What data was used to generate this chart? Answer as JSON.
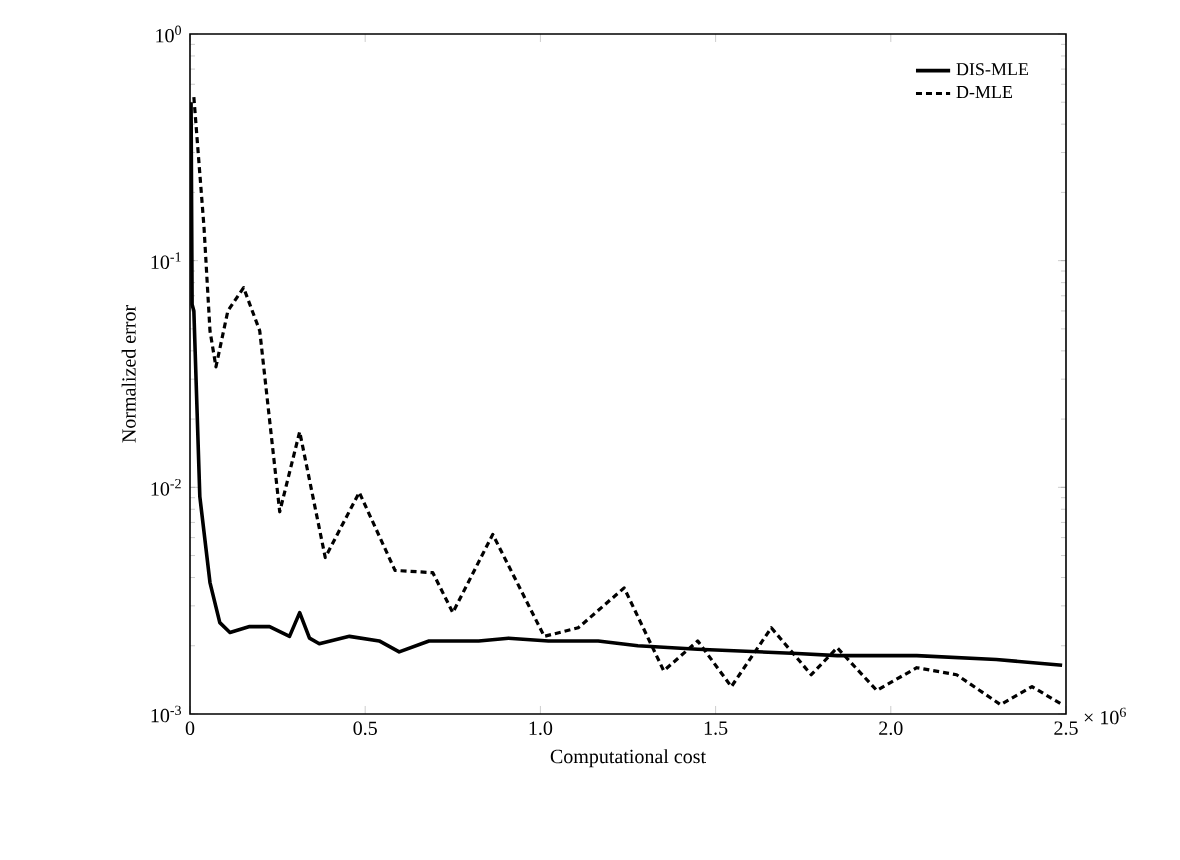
{
  "chart_data": {
    "type": "line",
    "xlabel": "Computational cost",
    "ylabel": "Normalized error",
    "log": "y",
    "legend": "top right",
    "grid": false,
    "xlim": [
      0,
      2.5
    ],
    "ylim": [
      0.001,
      1
    ],
    "xticks": [
      0,
      0.5,
      {
        "value": 1,
        "label": "1.0"
      },
      1.5,
      {
        "value": 2,
        "label": "2.0"
      },
      2.5
    ],
    "yticks": [
      {
        "value": 0.001,
        "label": "10$^{-3}$"
      },
      {
        "value": 0.01,
        "label": "10$^{-2}$"
      },
      {
        "value": 0.1,
        "label": "10$^{-1}$"
      },
      {
        "value": 1,
        "label": "10$^{0}$"
      }
    ],
    "annotations": [
      "× 10$^{6}$"
    ],
    "series": [
      {
        "name": "DIS-MLE",
        "color": "#000000",
        "line_style": "solid",
        "x": [
          0.003,
          0.006,
          0.011,
          0.028,
          0.057,
          0.085,
          0.114,
          0.17,
          0.227,
          0.284,
          0.313,
          0.341,
          0.369,
          0.455,
          0.54,
          0.597,
          0.682,
          0.824,
          0.909,
          1.023,
          1.165,
          1.278,
          1.449,
          1.733,
          1.847,
          2.074,
          2.301,
          2.489
        ],
        "values": [
          0.5,
          0.064,
          0.06,
          0.0091,
          0.0038,
          0.00253,
          0.00229,
          0.00243,
          0.00243,
          0.0022,
          0.0028,
          0.00216,
          0.00204,
          0.0022,
          0.0021,
          0.00188,
          0.0021,
          0.0021,
          0.00216,
          0.0021,
          0.0021,
          0.002,
          0.00193,
          0.00185,
          0.00181,
          0.00181,
          0.00174,
          0.00164
        ]
      },
      {
        "name": "D-MLE",
        "color": "#000000",
        "line_style": "dashed",
        "x": [
          0.011,
          0.04,
          0.057,
          0.074,
          0.108,
          0.153,
          0.199,
          0.256,
          0.313,
          0.386,
          0.483,
          0.585,
          0.693,
          0.75,
          0.864,
          1.011,
          1.108,
          1.239,
          1.352,
          1.449,
          1.545,
          1.659,
          1.773,
          1.847,
          1.96,
          2.074,
          2.188,
          2.313,
          2.403,
          2.489
        ],
        "values": [
          0.526,
          0.14,
          0.049,
          0.034,
          0.06,
          0.076,
          0.049,
          0.0078,
          0.0176,
          0.0049,
          0.0095,
          0.0043,
          0.0042,
          0.0028,
          0.0062,
          0.0022,
          0.0024,
          0.0036,
          0.00155,
          0.0021,
          0.00132,
          0.0024,
          0.00149,
          0.00196,
          0.00127,
          0.0016,
          0.00149,
          0.0011,
          0.00132,
          0.0011
        ]
      }
    ]
  }
}
